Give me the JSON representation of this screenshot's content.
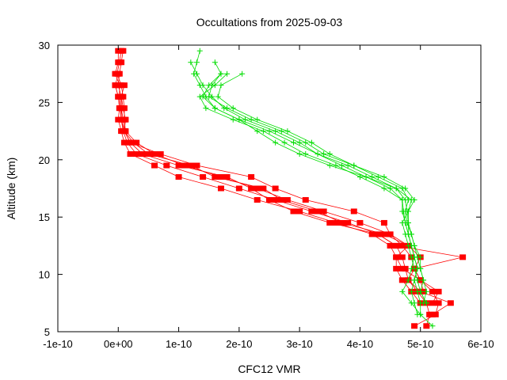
{
  "chart_data": {
    "type": "line",
    "title": "Occultations from 2025-09-03",
    "xlabel": "CFC12 VMR",
    "ylabel": "Altitude (km)",
    "xlim": [
      -1e-10,
      6e-10
    ],
    "ylim": [
      5,
      30
    ],
    "x_ticks": [
      {
        "value": -1e-10,
        "label": "-1e-10"
      },
      {
        "value": 0,
        "label": "0e+00"
      },
      {
        "value": 1e-10,
        "label": "1e-10"
      },
      {
        "value": 2e-10,
        "label": "2e-10"
      },
      {
        "value": 3e-10,
        "label": "3e-10"
      },
      {
        "value": 4e-10,
        "label": "4e-10"
      },
      {
        "value": 5e-10,
        "label": "5e-10"
      },
      {
        "value": 6e-10,
        "label": "6e-10"
      }
    ],
    "y_ticks": [
      {
        "value": 5,
        "label": "5"
      },
      {
        "value": 10,
        "label": "10"
      },
      {
        "value": 15,
        "label": "15"
      },
      {
        "value": 20,
        "label": "20"
      },
      {
        "value": 25,
        "label": "25"
      },
      {
        "value": 30,
        "label": "30"
      }
    ],
    "grid": false,
    "legend": "none",
    "series": [
      {
        "color": "#ff0000",
        "marker": "square",
        "altitude": [
          29.5,
          28.5,
          27.5,
          26.5,
          25.5,
          24.5,
          23.5,
          22.5,
          21.5,
          20.5,
          19.5,
          18.5,
          17.5,
          16.5,
          15.5,
          14.5,
          13.5,
          12.5,
          11.5,
          10.5,
          9.5,
          8.5,
          7.5,
          6.5,
          5.5
        ],
        "values": [
          0.0,
          0.0,
          -5e-12,
          2e-12,
          2e-12,
          5e-12,
          5e-12,
          8e-12,
          1.5e-11,
          3e-11,
          8e-11,
          1.4e-10,
          2e-10,
          2.6e-10,
          3.2e-10,
          3.8e-10,
          4.3e-10,
          4.6e-10,
          4.7e-10,
          4.75e-10,
          4.8e-10,
          4.95e-10,
          5.1e-10,
          5.15e-10,
          5.1e-10
        ]
      },
      {
        "color": "#ff0000",
        "marker": "square",
        "altitude": [
          29.5,
          28.5,
          27.5,
          26.5,
          25.5,
          24.5,
          23.5,
          22.5,
          21.5,
          20.5,
          19.5,
          18.5,
          17.5,
          16.5,
          15.5,
          14.5,
          13.5,
          12.5,
          11.5,
          10.5,
          9.5,
          8.5,
          7.5,
          6.5,
          5.5
        ],
        "values": [
          5e-12,
          2e-12,
          -2e-12,
          5e-12,
          8e-12,
          1e-11,
          1e-11,
          1.2e-11,
          3e-11,
          6e-11,
          1.1e-10,
          1.7e-10,
          2.3e-10,
          2.8e-10,
          3.4e-10,
          4e-10,
          4.5e-10,
          4.8e-10,
          5e-10,
          4.9e-10,
          5e-10,
          5.2e-10,
          5.3e-10,
          5.25e-10,
          4.9e-10
        ]
      },
      {
        "color": "#ff0000",
        "marker": "square",
        "altitude": [
          27.5,
          26.5,
          25.5,
          24.5,
          23.5,
          22.5,
          21.5,
          20.5,
          19.5,
          18.5,
          17.5,
          16.5,
          15.5,
          14.5,
          13.5,
          12.5,
          11.5,
          10.5,
          9.5,
          8.5,
          7.5
        ],
        "values": [
          0.0,
          -5e-12,
          0.0,
          2e-12,
          0.0,
          5e-12,
          1e-11,
          2e-11,
          6e-11,
          1e-10,
          1.7e-10,
          2.3e-10,
          3e-10,
          3.6e-10,
          4.2e-10,
          4.5e-10,
          4.6e-10,
          4.6e-10,
          4.7e-10,
          4.85e-10,
          5e-10
        ]
      },
      {
        "color": "#ff0000",
        "marker": "square",
        "altitude": [
          26.5,
          25.5,
          24.5,
          23.5,
          22.5,
          21.5,
          20.5,
          19.5,
          18.5,
          17.5,
          16.5,
          15.5,
          14.5,
          13.5,
          12.5,
          11.5,
          10.5,
          9.5,
          8.5,
          7.5,
          6.5
        ],
        "values": [
          1e-11,
          5e-12,
          5e-12,
          8e-12,
          1e-11,
          2e-11,
          4e-11,
          1e-10,
          1.8e-10,
          2.2e-10,
          2.5e-10,
          2.9e-10,
          3.5e-10,
          4.3e-10,
          4.6e-10,
          5.7e-10,
          4.9e-10,
          4.8e-10,
          5e-10,
          5.5e-10,
          5.2e-10
        ]
      },
      {
        "color": "#ff0000",
        "marker": "square",
        "altitude": [
          29.5,
          28.5,
          27.5,
          26.5,
          25.5,
          24.5,
          23.5,
          22.5,
          21.5,
          20.5,
          19.5,
          18.5,
          17.5,
          16.5,
          15.5,
          14.5,
          13.5,
          12.5,
          11.5,
          10.5,
          9.5,
          8.5
        ],
        "values": [
          8e-12,
          5e-12,
          2e-12,
          0.0,
          5e-12,
          8e-12,
          1.2e-11,
          1e-11,
          2e-11,
          7e-11,
          1.3e-10,
          2.2e-10,
          2.6e-10,
          3.1e-10,
          3.9e-10,
          4.4e-10,
          4.5e-10,
          4.7e-10,
          4.85e-10,
          4.9e-10,
          5e-10,
          5.05e-10
        ]
      },
      {
        "color": "#ff0000",
        "marker": "square",
        "altitude": [
          26.5,
          25.5,
          24.5,
          23.5,
          22.5,
          21.5,
          20.5,
          19.5,
          18.5,
          17.5,
          16.5,
          15.5,
          14.5,
          13.5,
          12.5,
          11.5,
          10.5,
          9.5,
          8.5,
          7.5
        ],
        "values": [
          -5e-12,
          0.0,
          3e-12,
          5e-12,
          1e-11,
          2.5e-11,
          5e-11,
          1.2e-10,
          1.6e-10,
          2.4e-10,
          2.7e-10,
          3.3e-10,
          3.7e-10,
          4.4e-10,
          4.8e-10,
          4.6e-10,
          4.7e-10,
          5e-10,
          5.3e-10,
          5.2e-10
        ]
      },
      {
        "color": "#00dd00",
        "marker": "plus",
        "altitude": [
          29.5,
          28.5,
          27.5,
          26.5,
          25.5,
          24.5,
          23.5,
          22.5,
          21.5,
          20.5,
          19.5,
          18.5,
          17.5,
          16.5,
          15.5,
          14.5,
          13.5,
          12.5,
          11.5,
          10.5,
          9.5,
          8.5,
          7.5,
          6.5
        ],
        "values": [
          1.35e-10,
          1.3e-10,
          1.25e-10,
          1.35e-10,
          1.45e-10,
          1.6e-10,
          2e-10,
          2.5e-10,
          2.9e-10,
          3.3e-10,
          3.8e-10,
          4.2e-10,
          4.6e-10,
          4.75e-10,
          4.78e-10,
          4.8e-10,
          4.8e-10,
          4.85e-10,
          4.9e-10,
          4.95e-10,
          4.9e-10,
          4.95e-10,
          5e-10,
          5e-10
        ]
      },
      {
        "color": "#00dd00",
        "marker": "plus",
        "altitude": [
          28.5,
          27.5,
          26.5,
          25.5,
          24.5,
          23.5,
          22.5,
          21.5,
          20.5,
          19.5,
          18.5,
          17.5,
          16.5,
          15.5,
          14.5,
          13.5,
          12.5,
          11.5,
          10.5,
          9.5,
          8.5,
          7.5
        ],
        "values": [
          1.6e-10,
          1.7e-10,
          1.55e-10,
          1.5e-10,
          1.8e-10,
          2.2e-10,
          2.7e-10,
          3.1e-10,
          3.4e-10,
          3.9e-10,
          4.3e-10,
          4.7e-10,
          4.8e-10,
          4.75e-10,
          4.78e-10,
          4.85e-10,
          4.9e-10,
          5e-10,
          5e-10,
          5.05e-10,
          5.1e-10,
          5.05e-10
        ]
      },
      {
        "color": "#00dd00",
        "marker": "plus",
        "altitude": [
          28.5,
          27.5,
          26.5,
          25.5,
          24.5,
          23.5,
          22.5,
          21.5,
          20.5,
          19.5,
          18.5,
          17.5,
          16.5,
          15.5,
          14.5,
          13.5,
          12.5,
          11.5,
          10.5,
          9.5,
          8.5,
          7.5,
          6.5
        ],
        "values": [
          1.2e-10,
          1.3e-10,
          1.4e-10,
          1.55e-10,
          1.75e-10,
          2.1e-10,
          2.6e-10,
          3e-10,
          3.3e-10,
          3.7e-10,
          4.1e-10,
          4.5e-10,
          4.7e-10,
          4.7e-10,
          4.75e-10,
          4.8e-10,
          4.85e-10,
          4.9e-10,
          4.95e-10,
          4.9e-10,
          4.85e-10,
          4.9e-10,
          4.95e-10
        ]
      },
      {
        "color": "#00dd00",
        "marker": "plus",
        "altitude": [
          27.5,
          26.5,
          25.5,
          24.5,
          23.5,
          22.5,
          21.5,
          20.5,
          19.5,
          18.5,
          17.5,
          16.5,
          15.5,
          14.5,
          13.5,
          12.5,
          11.5,
          10.5,
          9.5,
          8.5,
          7.5
        ],
        "values": [
          2.05e-10,
          1.7e-10,
          1.65e-10,
          1.9e-10,
          2.3e-10,
          2.8e-10,
          3.2e-10,
          3.5e-10,
          3.9e-10,
          4.4e-10,
          4.75e-10,
          4.9e-10,
          4.8e-10,
          4.8e-10,
          4.85e-10,
          4.9e-10,
          4.95e-10,
          5e-10,
          5.05e-10,
          5e-10,
          5.1e-10
        ]
      },
      {
        "color": "#00dd00",
        "marker": "plus",
        "altitude": [
          27.5,
          26.5,
          25.5,
          24.5,
          23.5,
          22.5,
          21.5,
          20.5,
          19.5,
          18.5,
          17.5,
          16.5,
          15.5,
          14.5,
          13.5,
          12.5,
          11.5,
          10.5,
          9.5,
          8.5,
          7.5,
          6.5,
          5.5
        ],
        "values": [
          1.8e-10,
          1.6e-10,
          1.35e-10,
          1.45e-10,
          1.9e-10,
          2.4e-10,
          2.75e-10,
          3.1e-10,
          3.6e-10,
          4e-10,
          4.4e-10,
          4.7e-10,
          4.72e-10,
          4.75e-10,
          4.8e-10,
          4.85e-10,
          4.9e-10,
          4.85e-10,
          4.8e-10,
          4.7e-10,
          4.85e-10,
          5e-10,
          5.2e-10
        ]
      },
      {
        "color": "#00dd00",
        "marker": "plus",
        "altitude": [
          27.5,
          26.5,
          25.5,
          24.5,
          23.5,
          22.5,
          21.5,
          20.5,
          19.5,
          18.5,
          17.5,
          16.5,
          15.5,
          14.5,
          13.5,
          12.5,
          11.5,
          10.5,
          9.5,
          8.5,
          7.5
        ],
        "values": [
          1.7e-10,
          1.5e-10,
          1.4e-10,
          1.6e-10,
          2e-10,
          2.3e-10,
          2.6e-10,
          3e-10,
          3.5e-10,
          4.1e-10,
          4.6e-10,
          4.85e-10,
          4.8e-10,
          4.7e-10,
          4.75e-10,
          4.8e-10,
          4.85e-10,
          4.9e-10,
          4.95e-10,
          5e-10,
          5.1e-10
        ]
      }
    ]
  }
}
